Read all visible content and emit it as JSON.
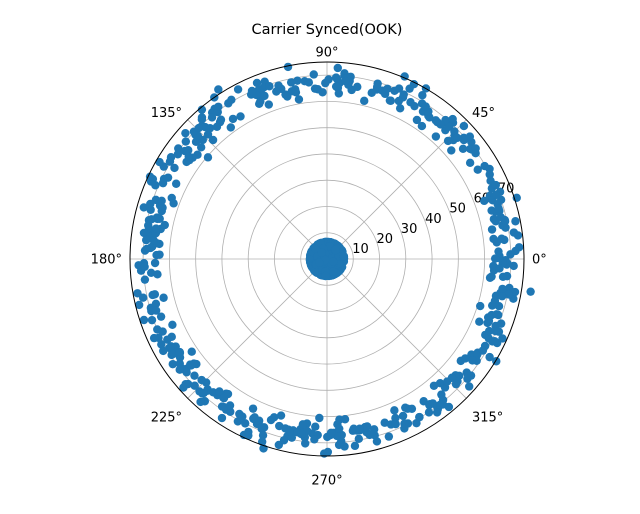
{
  "chart_data": {
    "type": "scatter",
    "projection": "polar",
    "title": "Carrier Synced(OOK)",
    "marker_color": "#1f77b4",
    "grid": true,
    "r_range": [
      0,
      75
    ],
    "r_ticks": [
      10,
      20,
      30,
      40,
      50,
      60,
      70
    ],
    "r_tick_labels": [
      "10",
      "20",
      "30",
      "40",
      "50",
      "60",
      "70"
    ],
    "r_label_angle_deg": 22.5,
    "theta_ticks_deg": [
      0,
      45,
      90,
      135,
      180,
      225,
      270,
      315
    ],
    "theta_tick_labels": [
      "0°",
      "45°",
      "90°",
      "135°",
      "180°",
      "225°",
      "270°",
      "315°"
    ],
    "clusters": [
      {
        "name": "",
        "r_mean": 68,
        "r_spread": 2.8,
        "theta_range_deg": [
          0,
          360
        ],
        "approx_point_count": 500,
        "seed": 7
      },
      {
        "name": "",
        "r_mean": 0,
        "r_spread": 5,
        "theta_range_deg": [
          0,
          360
        ],
        "approx_point_count": 500,
        "seed": 13
      }
    ]
  }
}
